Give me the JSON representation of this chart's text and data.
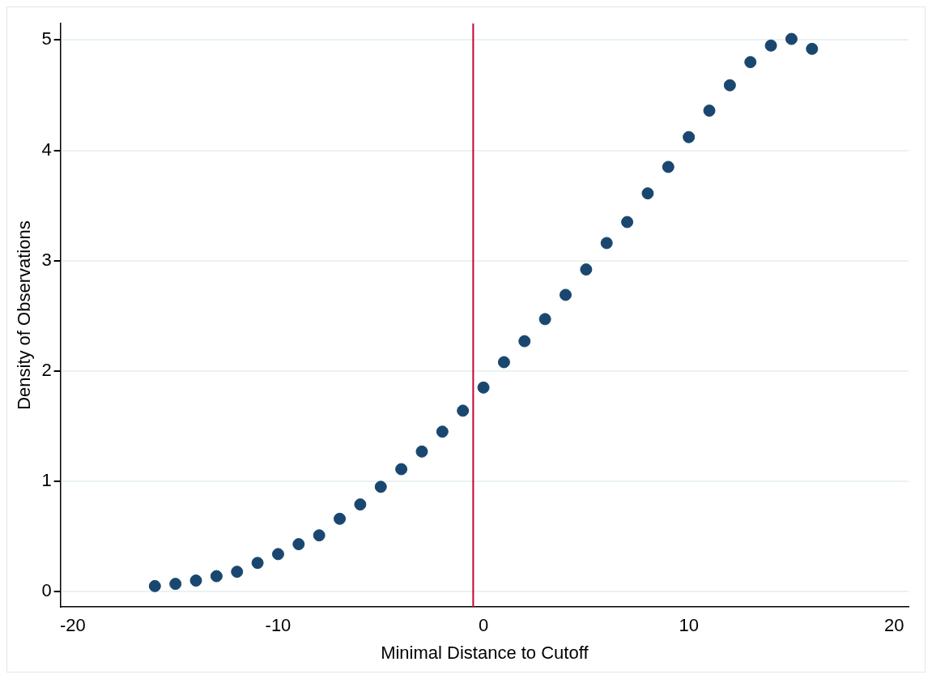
{
  "chart_data": {
    "type": "scatter",
    "xlabel": "Minimal Distance to Cutoff",
    "ylabel": "Density of Observations",
    "x": [
      -16,
      -15,
      -14,
      -13,
      -12,
      -11,
      -10,
      -9,
      -8,
      -7,
      -6,
      -5,
      -4,
      -3,
      -2,
      -1,
      0,
      1,
      2,
      3,
      4,
      5,
      6,
      7,
      8,
      9,
      10,
      11,
      12,
      13,
      14,
      15,
      16
    ],
    "series": [
      {
        "color": "#1a476f",
        "values": [
          0.05,
          0.07,
          0.1,
          0.14,
          0.18,
          0.26,
          0.34,
          0.43,
          0.51,
          0.66,
          0.79,
          0.95,
          1.11,
          1.27,
          1.45,
          1.64,
          1.85,
          2.08,
          2.27,
          2.47,
          2.69,
          2.92,
          3.16,
          3.35,
          3.61,
          3.85,
          4.12,
          4.36,
          4.59,
          4.8,
          4.95,
          5.01,
          4.92
        ]
      }
    ],
    "xlim": [
      -20.6,
      20.7
    ],
    "xticks": [
      -20,
      -10,
      0,
      10,
      20
    ],
    "ylim": [
      -0.14,
      5.15
    ],
    "yticks": [
      0,
      1,
      2,
      3,
      4,
      5
    ],
    "grid": "y",
    "marker": "circle",
    "legend": false,
    "ref_lines": [
      {
        "axis": "x",
        "value": -0.5,
        "color": "#c10534"
      }
    ]
  }
}
